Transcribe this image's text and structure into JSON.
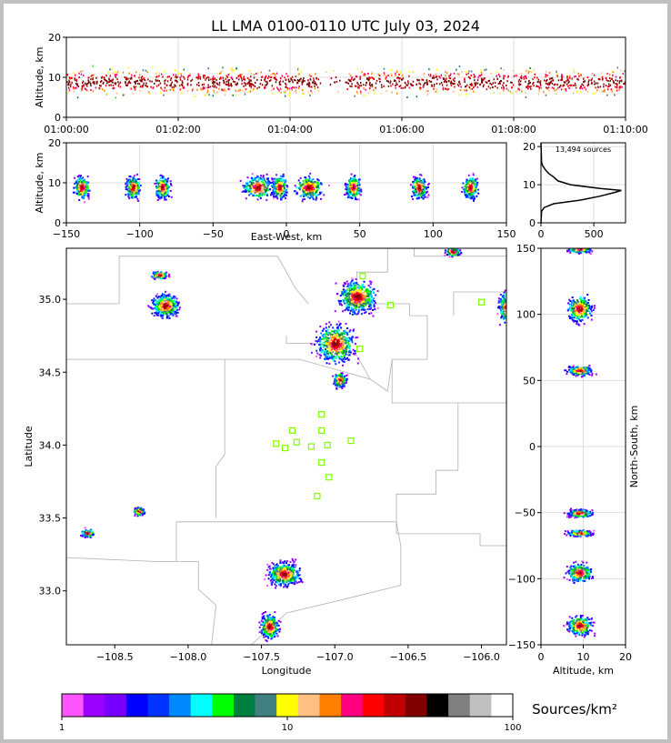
{
  "title": "LL LMA 0100-0110 UTC July 03, 2024",
  "colors": {
    "grid": "#dddddd",
    "border": "#b0b0b0",
    "station": "#80ff00",
    "axis": "#000000"
  },
  "chart_data": [
    {
      "type": "scatter",
      "panel": "altitude-vs-time",
      "xlabel": "",
      "ylabel": "Altitude, km",
      "x_ticks": [
        "01:00:00",
        "01:02:00",
        "01:04:00",
        "01:06:00",
        "01:08:00",
        "01:10:00"
      ],
      "y_ticks": [
        0,
        10,
        20
      ],
      "ylim": [
        0,
        20
      ],
      "description_x": "time UTC",
      "grid": true
    },
    {
      "type": "scatter",
      "panel": "altitude-vs-east-west",
      "xlabel": "East-West, km",
      "ylabel": "Altitude, km",
      "x_ticks": [
        -150,
        -100,
        -50,
        0,
        50,
        100,
        150
      ],
      "xlim": [
        -150,
        150
      ],
      "y_ticks": [
        0,
        10,
        20
      ],
      "ylim": [
        0,
        20
      ],
      "grid": true,
      "clusters_x": [
        -140,
        -105,
        -85,
        -20,
        -5,
        15,
        45,
        90,
        125
      ]
    },
    {
      "type": "line",
      "panel": "altitude-histogram",
      "annotation": "13,494 sources",
      "x_ticks": [
        0,
        500
      ],
      "xlim": [
        0,
        800
      ],
      "y_ticks": [
        0,
        10,
        20
      ],
      "ylim": [
        0,
        21
      ],
      "series": [
        {
          "altitude": [
            0,
            3,
            4,
            5,
            6,
            7,
            8,
            8.5,
            9,
            10,
            11,
            12,
            13,
            14,
            15,
            16,
            21
          ],
          "count": [
            0,
            5,
            30,
            120,
            380,
            560,
            700,
            760,
            560,
            280,
            160,
            120,
            70,
            40,
            15,
            5,
            0
          ]
        }
      ],
      "grid": true
    },
    {
      "type": "heatmap",
      "panel": "plan-view",
      "xlabel": "Longitude",
      "ylabel": "Latitude",
      "x_ticks": [
        -108.5,
        -108.0,
        -107.5,
        -107.0,
        -106.5,
        -106.0
      ],
      "xlim": [
        -108.83,
        -105.83
      ],
      "y_ticks": [
        33.0,
        33.5,
        34.0,
        34.5,
        35.0
      ],
      "ylim": [
        32.63,
        35.35
      ],
      "stations": [
        [
          -106.81,
          35.16
        ],
        [
          -106.62,
          34.96
        ],
        [
          -106.0,
          34.98
        ],
        [
          -106.83,
          34.66
        ],
        [
          -107.09,
          34.21
        ],
        [
          -107.29,
          34.1
        ],
        [
          -107.09,
          34.1
        ],
        [
          -107.4,
          34.01
        ],
        [
          -107.34,
          33.98
        ],
        [
          -107.26,
          34.02
        ],
        [
          -107.16,
          33.99
        ],
        [
          -107.05,
          34.0
        ],
        [
          -106.89,
          34.03
        ],
        [
          -107.09,
          33.88
        ],
        [
          -107.04,
          33.78
        ],
        [
          -107.12,
          33.65
        ]
      ],
      "storms": [
        {
          "lon": -108.2,
          "lat": 35.17,
          "w": 0.15,
          "h": 0.07
        },
        {
          "lon": -108.16,
          "lat": 34.96,
          "w": 0.25,
          "h": 0.22
        },
        {
          "lon": -106.85,
          "lat": 35.02,
          "w": 0.35,
          "h": 0.3
        },
        {
          "lon": -106.2,
          "lat": 35.33,
          "w": 0.15,
          "h": 0.08
        },
        {
          "lon": -105.83,
          "lat": 34.95,
          "w": 0.16,
          "h": 0.3
        },
        {
          "lon": -107.0,
          "lat": 34.7,
          "w": 0.35,
          "h": 0.35
        },
        {
          "lon": -106.97,
          "lat": 34.45,
          "w": 0.12,
          "h": 0.14
        },
        {
          "lon": -108.69,
          "lat": 33.4,
          "w": 0.12,
          "h": 0.08
        },
        {
          "lon": -108.34,
          "lat": 33.55,
          "w": 0.1,
          "h": 0.08
        },
        {
          "lon": -107.35,
          "lat": 33.12,
          "w": 0.3,
          "h": 0.22
        },
        {
          "lon": -107.45,
          "lat": 32.76,
          "w": 0.18,
          "h": 0.23
        }
      ]
    },
    {
      "type": "scatter",
      "panel": "north-south-vs-altitude",
      "xlabel": "Altitude, km",
      "ylabel": "North-South, km",
      "x_ticks": [
        0,
        10,
        20
      ],
      "xlim": [
        0,
        20
      ],
      "y_ticks": [
        -150,
        -100,
        -50,
        0,
        50,
        100,
        150
      ],
      "ylim": [
        -150,
        150
      ],
      "grid": true
    },
    {
      "type": "colorbar",
      "label": "Sources/km²",
      "scale": "log",
      "ticks": [
        "1",
        "10",
        "100"
      ],
      "range": [
        1,
        100
      ],
      "colors": [
        "#ff55ff",
        "#9900ff",
        "#7700ff",
        "#0000ff",
        "#0033ff",
        "#0088ff",
        "#00ffff",
        "#00ff00",
        "#008040",
        "#408080",
        "#ffff00",
        "#ffc080",
        "#ff8000",
        "#ff0080",
        "#ff0000",
        "#c00000",
        "#800000",
        "#000000",
        "#808080",
        "#c0c0c0",
        "#ffffff"
      ]
    }
  ]
}
